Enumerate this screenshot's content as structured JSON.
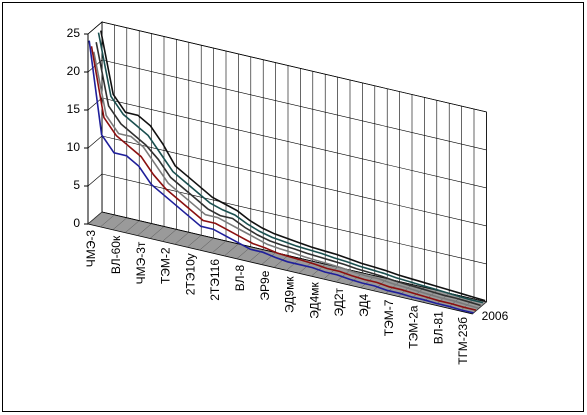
{
  "chart_data": {
    "type": "line3d",
    "categories": [
      "ЧМЭ-3",
      null,
      "ВЛ-60к",
      null,
      "ЧМЭ-3т",
      null,
      "ТЭМ-2",
      null,
      "2ТЭ10у",
      null,
      "2ТЭ116",
      null,
      "ВЛ-8",
      null,
      "ЭР9е",
      null,
      "ЭД9мк",
      null,
      "ЭД4мк",
      null,
      "ЭД2т",
      null,
      "ЭД4",
      null,
      "ТЭМ-7",
      null,
      "ТЭМ-2а",
      null,
      "ВЛ-81",
      null,
      "ТГМ-23б",
      null
    ],
    "series": [
      {
        "name": "2006",
        "color": "#1f1f9a",
        "values": [
          24,
          12,
          10,
          10,
          9,
          7,
          6,
          5,
          4,
          3,
          3,
          2.5,
          2,
          1.5,
          1.5,
          1.2,
          1,
          1,
          1,
          0.8,
          0.8,
          0.6,
          0.5,
          0.5,
          0.3,
          0.3,
          0.2,
          0.2,
          0.1,
          0.1,
          0,
          0
        ]
      },
      {
        "color": "#8b1010",
        "values": [
          23,
          14,
          12,
          11,
          10,
          8,
          6.5,
          5.5,
          4.5,
          3.5,
          3.5,
          3,
          2.5,
          2,
          1.8,
          1.5,
          1.4,
          1.3,
          1.2,
          1,
          1,
          0.8,
          0.7,
          0.7,
          0.5,
          0.5,
          0.4,
          0.3,
          0.2,
          0.2,
          0.1,
          0.1
        ]
      },
      {
        "color": "#7a7a7a",
        "values": [
          22,
          14,
          12,
          12,
          11,
          9,
          7,
          6,
          5,
          4,
          4,
          3.5,
          3,
          2.5,
          2,
          1.8,
          1.7,
          1.5,
          1.4,
          1.3,
          1.2,
          1,
          0.9,
          0.9,
          0.7,
          0.6,
          0.5,
          0.4,
          0.3,
          0.3,
          0.2,
          0.1
        ]
      },
      {
        "color": "#303030",
        "values": [
          23,
          15,
          13,
          12,
          11,
          9.5,
          7.5,
          6.5,
          5.5,
          4.5,
          4,
          4,
          3.2,
          2.6,
          2.2,
          2,
          1.9,
          1.7,
          1.6,
          1.5,
          1.4,
          1.2,
          1.1,
          1,
          0.8,
          0.7,
          0.6,
          0.5,
          0.4,
          0.4,
          0.3,
          0.2
        ]
      },
      {
        "color": "#1a4f4f",
        "values": [
          24,
          16,
          14,
          13,
          12,
          10,
          8,
          7,
          6,
          5,
          4.5,
          4.2,
          3.4,
          2.8,
          2.4,
          2.2,
          2,
          1.9,
          1.8,
          1.6,
          1.5,
          1.3,
          1.2,
          1.1,
          0.9,
          0.8,
          0.7,
          0.6,
          0.5,
          0.4,
          0.3,
          0.3
        ]
      },
      {
        "color": "#111111",
        "values": [
          24,
          16,
          14,
          14,
          13,
          11,
          8.5,
          7.5,
          6.5,
          5.5,
          5,
          4.5,
          3.6,
          3,
          2.6,
          2.4,
          2.2,
          2,
          1.9,
          1.8,
          1.6,
          1.4,
          1.3,
          1.2,
          1,
          0.9,
          0.8,
          0.7,
          0.6,
          0.5,
          0.4,
          0.3
        ]
      }
    ],
    "ylim": [
      0,
      25
    ],
    "yticks": [
      0,
      5,
      10,
      15,
      20,
      25
    ],
    "grid": true
  }
}
